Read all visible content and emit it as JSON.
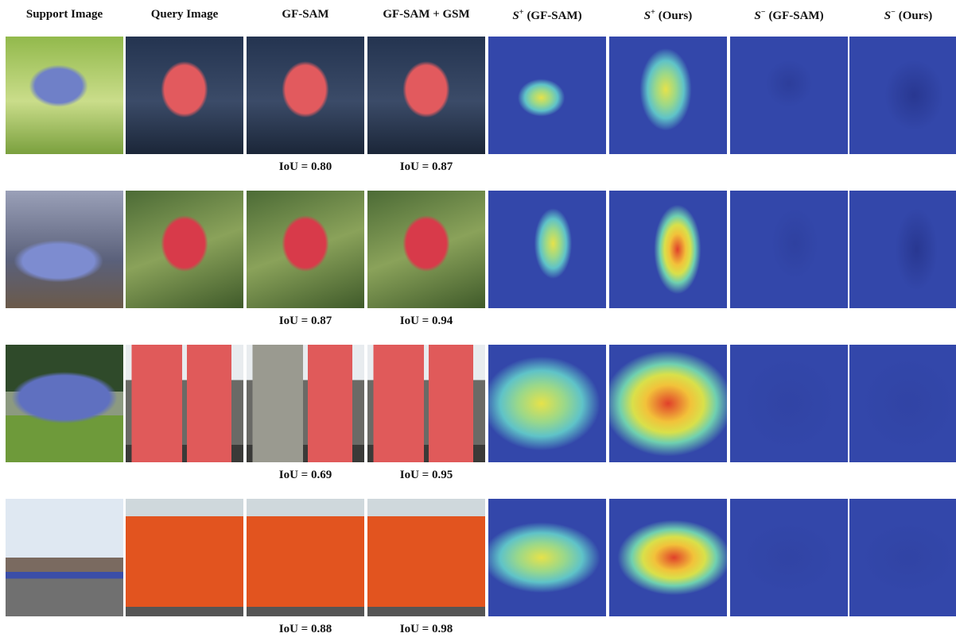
{
  "headers": [
    {
      "main": "Support Image"
    },
    {
      "main": "Query Image"
    },
    {
      "main": "GF-SAM"
    },
    {
      "main": "GF-SAM + GSM"
    },
    {
      "main": "S",
      "sup": "+",
      "rest": "(GF-SAM)"
    },
    {
      "main": "S",
      "sup": "+",
      "rest": "(Ours)"
    },
    {
      "main": "S",
      "sup": "−",
      "rest": "(GF-SAM)"
    },
    {
      "main": "S",
      "sup": "−",
      "rest": "(Ours)"
    }
  ],
  "rows": [
    {
      "iou": [
        "IoU = 0.80",
        "IoU = 0.87"
      ]
    },
    {
      "iou": [
        "IoU = 0.87",
        "IoU = 0.94"
      ]
    },
    {
      "iou": [
        "IoU = 0.69",
        "IoU = 0.95"
      ]
    },
    {
      "iou": [
        "IoU = 0.88",
        "IoU = 0.98"
      ]
    }
  ]
}
